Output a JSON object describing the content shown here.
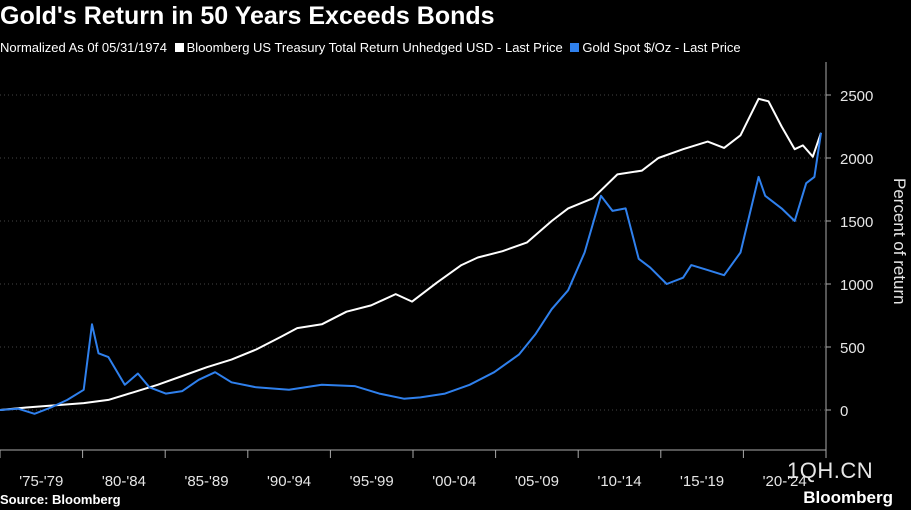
{
  "title": "Gold's Return in 50 Years Exceeds Bonds",
  "legend": {
    "prefix": "Normalized As 0f 05/31/1974",
    "items": [
      {
        "label": "Bloomberg US Treasury Total Return Unhedged USD - Last Price",
        "color": "#ffffff"
      },
      {
        "label": "Gold Spot $/Oz - Last Price",
        "color": "#2f80ed"
      }
    ]
  },
  "source": "Source: Bloomberg",
  "brand": "Bloomberg",
  "watermark": "1QH.CN",
  "chart_data": {
    "type": "line",
    "ylabel": "Percent of return",
    "ylim": [
      -300,
      2700
    ],
    "yticks": [
      0,
      500,
      1000,
      1500,
      2000,
      2500
    ],
    "xlim": [
      1974.4,
      2024.4
    ],
    "x_tick_labels": [
      "'75-'79",
      "'80-'84",
      "'85-'89",
      "'90-'94",
      "'95-'99",
      "'00-'04",
      "'05-'09",
      "'10-'14",
      "'15-'19",
      "'20-'24"
    ],
    "grid": true,
    "series": [
      {
        "name": "Bloomberg US Treasury Total Return Unhedged USD - Last Price",
        "color": "#ffffff",
        "x": [
          1974.4,
          1976,
          1978,
          1979.5,
          1981,
          1982.5,
          1984,
          1985.5,
          1987,
          1988.5,
          1990,
          1991.5,
          1992.5,
          1994,
          1995.5,
          1997,
          1998.5,
          1999.5,
          2001,
          2002.5,
          2003.5,
          2005,
          2006.5,
          2008,
          2009,
          2010.5,
          2012,
          2013.5,
          2014.5,
          2016,
          2017.5,
          2018.5,
          2019.5,
          2020.6,
          2021.2,
          2022,
          2022.8,
          2023.3,
          2023.9,
          2024.4
        ],
        "y": [
          0,
          20,
          40,
          55,
          80,
          140,
          200,
          270,
          340,
          400,
          480,
          580,
          650,
          680,
          780,
          830,
          920,
          860,
          1010,
          1150,
          1210,
          1260,
          1330,
          1500,
          1600,
          1680,
          1870,
          1900,
          2000,
          2070,
          2130,
          2080,
          2180,
          2470,
          2450,
          2250,
          2070,
          2100,
          2010,
          2200
        ]
      },
      {
        "name": "Gold Spot $/Oz - Last Price",
        "color": "#2f80ed",
        "x": [
          1974.4,
          1975.5,
          1976.5,
          1977.5,
          1978.5,
          1979.5,
          1980.0,
          1980.4,
          1981,
          1982,
          1982.8,
          1983.5,
          1984.5,
          1985.5,
          1986.5,
          1987.5,
          1988.5,
          1990,
          1992,
          1994,
          1996,
          1997.5,
          1999,
          2000,
          2001.5,
          2003,
          2004.5,
          2006,
          2007,
          2008,
          2009,
          2010,
          2011,
          2011.7,
          2012.5,
          2013.3,
          2014,
          2015,
          2016,
          2016.5,
          2017.5,
          2018.5,
          2019.5,
          2020.6,
          2021,
          2022,
          2022.8,
          2023.5,
          2024,
          2024.4
        ],
        "y": [
          0,
          10,
          -30,
          20,
          80,
          160,
          680,
          450,
          420,
          200,
          290,
          180,
          130,
          150,
          240,
          300,
          220,
          180,
          160,
          200,
          190,
          130,
          90,
          100,
          130,
          200,
          300,
          440,
          600,
          800,
          950,
          1250,
          1700,
          1580,
          1600,
          1200,
          1130,
          1000,
          1050,
          1150,
          1110,
          1070,
          1250,
          1850,
          1700,
          1600,
          1500,
          1800,
          1850,
          2200
        ]
      }
    ]
  }
}
